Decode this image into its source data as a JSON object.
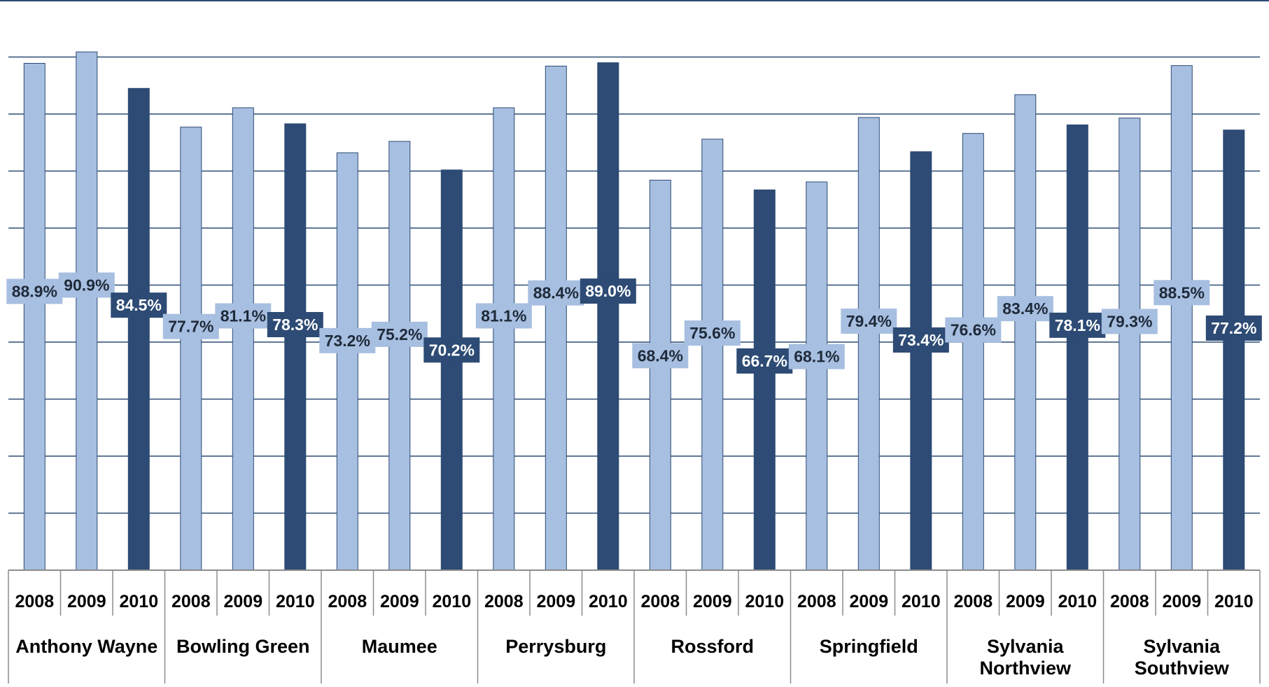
{
  "chart_data": {
    "type": "bar",
    "ylim": [
      0,
      100
    ],
    "grid": true,
    "legend": "none",
    "colors": {
      "2008": "#a7bfe0",
      "2009": "#a7bfe0",
      "2010": "#2d4b74",
      "label_dark_text": "#ffffff",
      "label_light_text": "#1f2a3a",
      "gridline": "#2d4b74",
      "axis_border": "#8c8c8c"
    },
    "groups": [
      {
        "name": "Anthony Wayne",
        "years": [
          "2008",
          "2009",
          "2010"
        ],
        "values": [
          88.9,
          90.9,
          84.5
        ],
        "labels": [
          "88.9%",
          "90.9%",
          "84.5%"
        ]
      },
      {
        "name": "Bowling Green",
        "years": [
          "2008",
          "2009",
          "2010"
        ],
        "values": [
          77.7,
          81.1,
          78.3
        ],
        "labels": [
          "77.7%",
          "81.1%",
          "78.3%"
        ]
      },
      {
        "name": "Maumee",
        "years": [
          "2008",
          "2009",
          "2010"
        ],
        "values": [
          73.2,
          75.2,
          70.2
        ],
        "labels": [
          "73.2%",
          "75.2%",
          "70.2%"
        ]
      },
      {
        "name": "Perrysburg",
        "years": [
          "2008",
          "2009",
          "2010"
        ],
        "values": [
          81.1,
          88.4,
          89.0
        ],
        "labels": [
          "81.1%",
          "88.4%",
          "89.0%"
        ]
      },
      {
        "name": "Rossford",
        "years": [
          "2008",
          "2009",
          "2010"
        ],
        "values": [
          68.4,
          75.6,
          66.7
        ],
        "labels": [
          "68.4%",
          "75.6%",
          "66.7%"
        ]
      },
      {
        "name": "Springfield",
        "years": [
          "2008",
          "2009",
          "2010"
        ],
        "values": [
          68.1,
          79.4,
          73.4
        ],
        "labels": [
          "68.1%",
          "79.4%",
          "73.4%"
        ]
      },
      {
        "name": "Sylvania Northview",
        "years": [
          "2008",
          "2009",
          "2010"
        ],
        "values": [
          76.6,
          83.4,
          78.1
        ],
        "labels": [
          "76.6%",
          "83.4%",
          "78.1%"
        ]
      },
      {
        "name": "Sylvania Southview",
        "years": [
          "2008",
          "2009",
          "2010"
        ],
        "values": [
          79.3,
          88.5,
          77.2
        ],
        "labels": [
          "79.3%",
          "88.5%",
          "77.2%"
        ]
      }
    ]
  }
}
